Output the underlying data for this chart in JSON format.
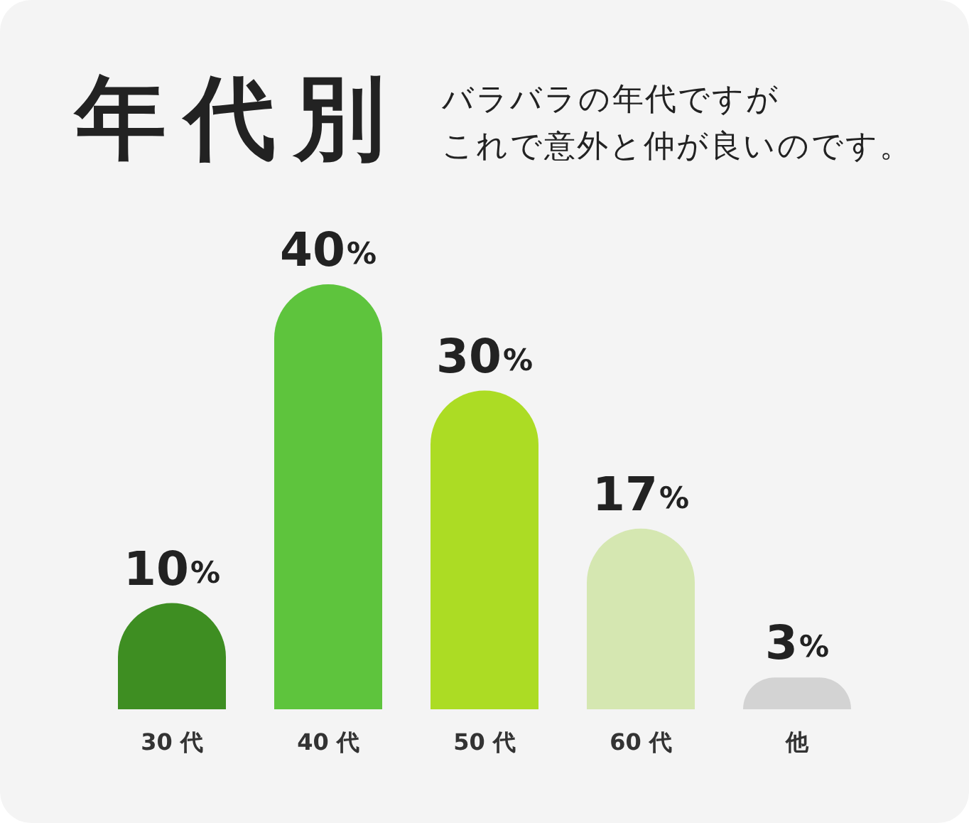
{
  "chart_data": {
    "type": "bar",
    "title": "年代別",
    "subtitle": "バラバラの年代ですがこれで意外と仲が良いのです。",
    "categories": [
      "30 代",
      "40 代",
      "50 代",
      "60 代",
      "他"
    ],
    "values": [
      10,
      40,
      30,
      17,
      3
    ],
    "colors": [
      "#3e8e22",
      "#5ec43d",
      "#acdc24",
      "#d5e7b1",
      "#d3d3d3"
    ],
    "value_labels": [
      "10%",
      "40%",
      "30%",
      "17%",
      "3%"
    ]
  }
}
